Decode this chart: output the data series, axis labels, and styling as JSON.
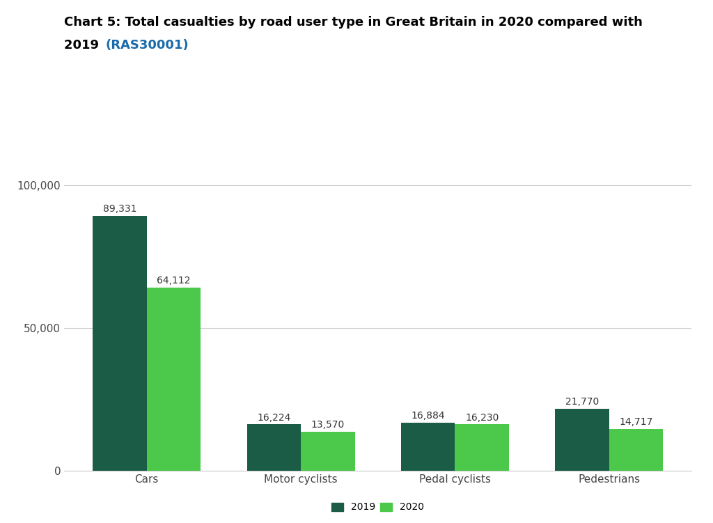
{
  "title_line1": "Chart 5: Total casualties by road user type in Great Britain in 2020 compared with",
  "title_line2": "2019 ",
  "title_link": "(RAS30001)",
  "categories": [
    "Cars",
    "Motor cyclists",
    "Pedal cyclists",
    "Pedestrians"
  ],
  "values_2019": [
    89331,
    16224,
    16884,
    21770
  ],
  "values_2020": [
    64112,
    13570,
    16230,
    14717
  ],
  "labels_2019": [
    "89,331",
    "16,224",
    "16,884",
    "21,770"
  ],
  "labels_2020": [
    "64,112",
    "13,570",
    "16,230",
    "14,717"
  ],
  "color_2019": "#1a5c45",
  "color_2020": "#4cc84a",
  "yticks": [
    0,
    50000,
    100000
  ],
  "ytick_labels": [
    "0",
    "50,000",
    "100,000"
  ],
  "ylim": [
    0,
    110000
  ],
  "bar_width": 0.35,
  "background_color": "#ffffff",
  "legend_labels": [
    "2019",
    "2020"
  ],
  "title_fontsize": 13,
  "axis_fontsize": 11,
  "label_fontsize": 10,
  "legend_fontsize": 10,
  "link_color": "#1a6aaa"
}
